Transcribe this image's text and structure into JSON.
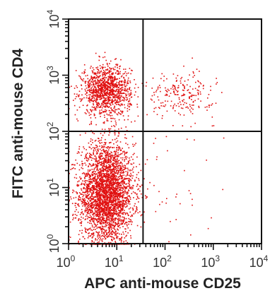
{
  "chart_data": {
    "type": "scatter",
    "title": "",
    "xlabel": "APC anti-mouse CD25",
    "ylabel": "FITC anti-mouse CD4",
    "xscale": "log",
    "yscale": "log",
    "xlim": [
      1,
      10000
    ],
    "ylim": [
      1,
      10000
    ],
    "x_ticks": [
      {
        "base": "10",
        "exp": "0"
      },
      {
        "base": "10",
        "exp": "1"
      },
      {
        "base": "10",
        "exp": "2"
      },
      {
        "base": "10",
        "exp": "3"
      },
      {
        "base": "10",
        "exp": "4"
      }
    ],
    "y_ticks": [
      {
        "base": "10",
        "exp": "0"
      },
      {
        "base": "10",
        "exp": "1"
      },
      {
        "base": "10",
        "exp": "2"
      },
      {
        "base": "10",
        "exp": "3"
      },
      {
        "base": "10",
        "exp": "4"
      }
    ],
    "quadrant_gates": {
      "x": 35,
      "y": 100
    },
    "point_color": "#e01010",
    "populations": [
      {
        "label_x_center": 6,
        "label_y_center": 8,
        "count": 3200,
        "spread_x_decades": 0.28,
        "spread_y_decades": 0.45
      },
      {
        "label_x_center": 6,
        "label_y_center": 550,
        "count": 1200,
        "spread_x_decades": 0.25,
        "spread_y_decades": 0.22
      },
      {
        "label_x_center": 200,
        "label_y_center": 450,
        "count": 220,
        "spread_x_decades": 0.35,
        "spread_y_decades": 0.2
      },
      {
        "label_x_center": 150,
        "label_y_center": 12,
        "count": 40,
        "spread_x_decades": 0.6,
        "spread_y_decades": 0.6
      }
    ]
  }
}
